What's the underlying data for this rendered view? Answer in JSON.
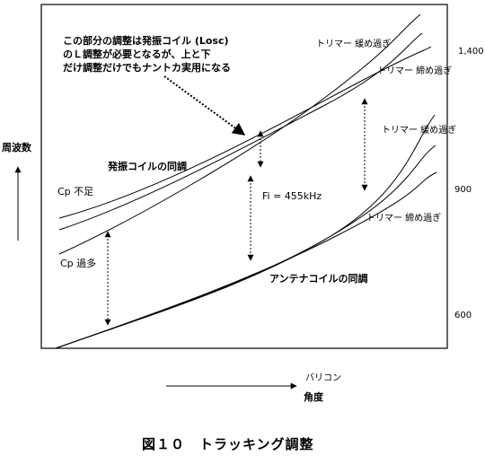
{
  "annotation": {
    "line1": "この部分の調整は発振コイル (Losc)",
    "line2": "のＬ調整が必要となるが、上と下",
    "line3": "だけ調整だけでもナントカ実用になる"
  },
  "labels": {
    "trimmer_loose_top": "トリマー 緩め過ぎ",
    "trimmer_tight_top": "トリマー 締め過ぎ",
    "trimmer_loose_lower": "トリマー 緩め過ぎ",
    "trimmer_tight_lower": "トリマー 締め過ぎ",
    "osc_tracking": "発振コイルの同調",
    "antenna_tracking": "アンテナコイルの同調",
    "cp_short": "Cp 不足",
    "cp_over": "Cp 過多",
    "fi": "Fi = 455kHz"
  },
  "y_axis": {
    "label": "周波数",
    "ticks": [
      "1,400",
      "900",
      "600"
    ]
  },
  "x_axis": {
    "sub_label": "バリコン",
    "label": "角度"
  },
  "caption": "図１０　トラッキング調整"
}
